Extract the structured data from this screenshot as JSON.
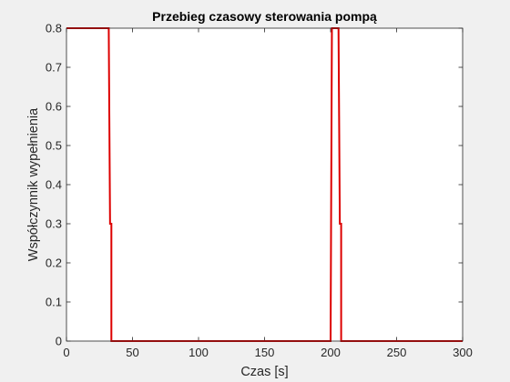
{
  "chart_data": {
    "type": "line",
    "title": "Przebieg czasowy sterowania pompą",
    "xlabel": "Czas [s]",
    "ylabel": "Współczynnik wypełnienia",
    "xlim": [
      0,
      300
    ],
    "ylim": [
      0,
      0.8
    ],
    "xticks": [
      0,
      50,
      100,
      150,
      200,
      250,
      300
    ],
    "yticks": [
      0,
      0.1,
      0.2,
      0.3,
      0.4,
      0.5,
      0.6,
      0.7,
      0.8
    ],
    "xtick_labels": [
      "0",
      "50",
      "100",
      "150",
      "200",
      "250",
      "300"
    ],
    "ytick_labels": [
      "0",
      "0.1",
      "0.2",
      "0.3",
      "0.4",
      "0.5",
      "0.6",
      "0.7",
      "0.8"
    ],
    "grid": false,
    "legend": "none",
    "series": [
      {
        "color": "#dd0000",
        "x": [
          0,
          32,
          33,
          33,
          34,
          34,
          200,
          201,
          202,
          206,
          207,
          208,
          208,
          300
        ],
        "y": [
          0.8,
          0.8,
          0.3,
          0.3,
          0.3,
          0,
          0,
          0.8,
          0.8,
          0.8,
          0.3,
          0.3,
          0,
          0
        ]
      }
    ]
  }
}
